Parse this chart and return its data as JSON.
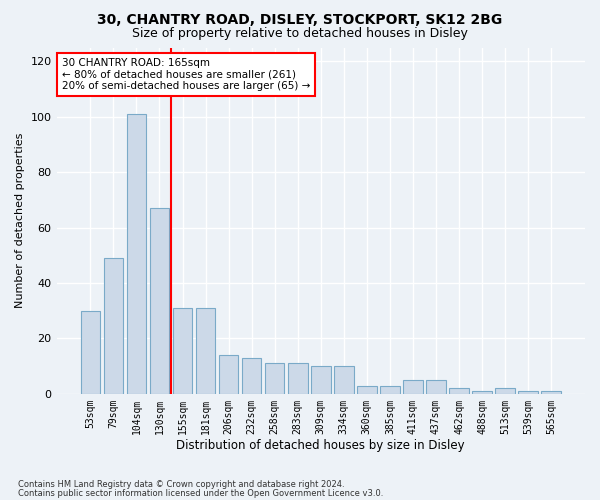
{
  "title1": "30, CHANTRY ROAD, DISLEY, STOCKPORT, SK12 2BG",
  "title2": "Size of property relative to detached houses in Disley",
  "xlabel": "Distribution of detached houses by size in Disley",
  "ylabel": "Number of detached properties",
  "categories": [
    "53sqm",
    "79sqm",
    "104sqm",
    "130sqm",
    "155sqm",
    "181sqm",
    "206sqm",
    "232sqm",
    "258sqm",
    "283sqm",
    "309sqm",
    "334sqm",
    "360sqm",
    "385sqm",
    "411sqm",
    "437sqm",
    "462sqm",
    "488sqm",
    "513sqm",
    "539sqm",
    "565sqm"
  ],
  "values": [
    30,
    49,
    101,
    67,
    31,
    31,
    14,
    13,
    11,
    11,
    10,
    10,
    3,
    3,
    5,
    5,
    2,
    1,
    2,
    1,
    1
  ],
  "bar_color": "#ccd9e8",
  "bar_edge_color": "#7aaac8",
  "redline_x": 3.5,
  "annotation_text": "30 CHANTRY ROAD: 165sqm\n← 80% of detached houses are smaller (261)\n20% of semi-detached houses are larger (65) →",
  "annotation_box_color": "white",
  "annotation_box_edge_color": "red",
  "footer1": "Contains HM Land Registry data © Crown copyright and database right 2024.",
  "footer2": "Contains public sector information licensed under the Open Government Licence v3.0.",
  "ylim": [
    0,
    125
  ],
  "yticks": [
    0,
    20,
    40,
    60,
    80,
    100,
    120
  ],
  "background_color": "#edf2f7",
  "grid_color": "#ffffff",
  "title1_fontsize": 10,
  "title2_fontsize": 9
}
